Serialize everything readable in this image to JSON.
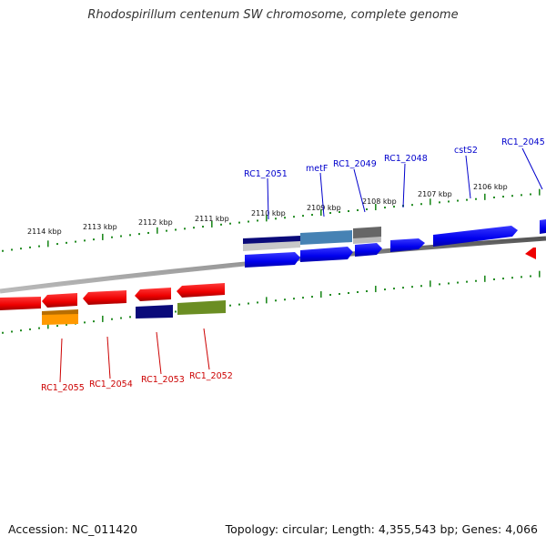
{
  "title": "Rhodospirillum centenum SW chromosome, complete genome",
  "footer": {
    "accession": "Accession: NC_011420",
    "summary": "Topology: circular; Length: 4,355,543 bp; Genes: 4,066"
  },
  "colors": {
    "forward_gene": "#0000ee",
    "reverse_gene": "#ee0000",
    "forward_label": "#0000cc",
    "reverse_label": "#cc0000",
    "tick": "#228b22",
    "backbone": "#888888"
  },
  "ticks": [
    {
      "label": "2114 kbp"
    },
    {
      "label": "2113 kbp"
    },
    {
      "label": "2112 kbp"
    },
    {
      "label": "2111 kbp"
    },
    {
      "label": "2110 kbp"
    },
    {
      "label": "2109 kbp"
    },
    {
      "label": "2108 kbp"
    },
    {
      "label": "2107 kbp"
    },
    {
      "label": "2106 kbp"
    }
  ],
  "forward_labels": [
    {
      "text": "RC1_2051"
    },
    {
      "text": "metF"
    },
    {
      "text": "RC1_2049"
    },
    {
      "text": "RC1_2048"
    },
    {
      "text": "cstS2"
    },
    {
      "text": "RC1_2045"
    }
  ],
  "reverse_labels": [
    {
      "text": "RC1_2055"
    },
    {
      "text": "RC1_2054"
    },
    {
      "text": "RC1_2053"
    },
    {
      "text": "RC1_2052"
    }
  ]
}
